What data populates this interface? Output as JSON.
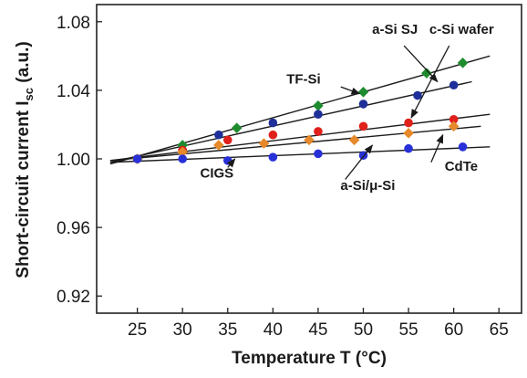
{
  "chart_data": {
    "type": "scatter",
    "title": "",
    "xlabel": "Temperature T (°C)",
    "ylabel_main": "Short-circuit current I",
    "ylabel_sub": "sc",
    "ylabel_unit": " (a.u.)",
    "xlim": [
      20.5,
      67.5
    ],
    "ylim": [
      0.91,
      1.09
    ],
    "xticks": [
      25,
      30,
      35,
      40,
      45,
      50,
      55,
      60,
      65
    ],
    "yticks": [
      0.92,
      0.96,
      1.0,
      1.04,
      1.08
    ],
    "ytick_labels": [
      "0.92",
      "0.96",
      "1.00",
      "1.04",
      "1.08"
    ],
    "grid": false,
    "legend": "none",
    "series": [
      {
        "name": "TF-Si",
        "color": "#1e8c2e",
        "marker": "diamond",
        "x": [
          25,
          30,
          36,
          45,
          50,
          57,
          61
        ],
        "y": [
          1.0,
          1.008,
          1.018,
          1.031,
          1.039,
          1.05,
          1.056
        ],
        "fit": [
          [
            22,
            0.997
          ],
          [
            64,
            1.06
          ]
        ]
      },
      {
        "name": "a-Si SJ",
        "color": "#1f2f9a",
        "marker": "circle",
        "x": [
          25,
          30,
          34,
          40,
          45,
          50,
          56,
          60
        ],
        "y": [
          1.0,
          1.005,
          1.014,
          1.021,
          1.026,
          1.032,
          1.037,
          1.043
        ],
        "fit": [
          [
            22,
            0.998
          ],
          [
            62,
            1.045
          ]
        ]
      },
      {
        "name": "c-Si wafer",
        "color": "#e0201a",
        "marker": "circle",
        "x": [
          25,
          30,
          35,
          40,
          45,
          50,
          55,
          60
        ],
        "y": [
          1.0,
          1.005,
          1.011,
          1.014,
          1.016,
          1.019,
          1.021,
          1.023
        ],
        "fit": [
          [
            22,
            0.999
          ],
          [
            64,
            1.026
          ]
        ]
      },
      {
        "name": "CdTe",
        "color": "#e6892a",
        "marker": "diamond",
        "x": [
          25,
          30,
          34,
          39,
          44,
          49,
          55,
          60
        ],
        "y": [
          1.0,
          1.004,
          1.008,
          1.009,
          1.011,
          1.011,
          1.015,
          1.019
        ],
        "fit": [
          [
            22,
            0.999
          ],
          [
            63,
            1.019
          ]
        ]
      },
      {
        "name": "CIGS",
        "color": "#2830d8",
        "marker": "circle",
        "x": [
          25,
          30,
          35,
          40,
          45,
          50,
          55,
          61
        ],
        "y": [
          1.0,
          1.0,
          0.999,
          1.001,
          1.003,
          1.002,
          1.006,
          1.007
        ],
        "fit": [
          [
            22,
            0.998
          ],
          [
            64,
            1.007
          ]
        ]
      }
    ],
    "annotations": [
      {
        "text": "TF-Si",
        "x": 41.5,
        "y": 1.044,
        "anchor": "start",
        "arrow_from": [
          47.5,
          1.042
        ],
        "arrow_to": [
          49.6,
          1.038
        ]
      },
      {
        "text": "a-Si SJ",
        "x": 53.5,
        "y": 1.073,
        "anchor": "middle",
        "arrow_from": [
          54.5,
          1.066
        ],
        "arrow_to": [
          58.2,
          1.045
        ]
      },
      {
        "text": "c-Si wafer",
        "x": 57.3,
        "y": 1.073,
        "anchor": "start",
        "arrow_from": [
          59.5,
          1.066
        ],
        "arrow_to": [
          55.3,
          1.024
        ]
      },
      {
        "text": "CIGS",
        "x": 33.8,
        "y": 0.989,
        "anchor": "middle",
        "arrow_from": [
          35.0,
          0.995
        ],
        "arrow_to": [
          35.8,
          1.0
        ]
      },
      {
        "text": "a-Si/μ-Si",
        "x": 50.5,
        "y": 0.982,
        "anchor": "middle",
        "arrow_from": [
          48.0,
          0.988
        ],
        "arrow_to": [
          51.0,
          1.008
        ]
      },
      {
        "text": "CdTe",
        "x": 59.0,
        "y": 0.993,
        "anchor": "start",
        "arrow_from": [
          57.5,
          0.998
        ],
        "arrow_to": [
          58.8,
          1.014
        ]
      }
    ]
  }
}
